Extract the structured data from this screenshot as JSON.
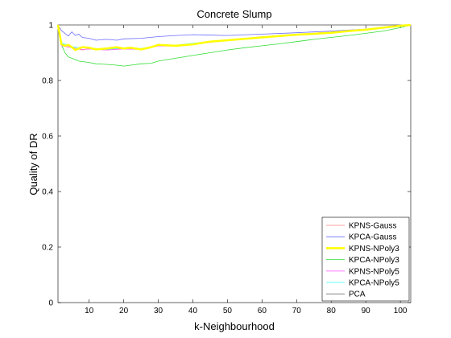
{
  "chart_data": {
    "type": "line",
    "title": "Concrete Slump",
    "xlabel": "k-Neighbourhood",
    "ylabel": "Quality of DR",
    "xlim": [
      1,
      103
    ],
    "ylim": [
      0,
      1.0
    ],
    "x_ticks": [
      10,
      20,
      30,
      40,
      50,
      60,
      70,
      80,
      90,
      100
    ],
    "y_ticks": [
      0,
      0.2,
      0.4,
      0.6,
      0.8,
      1
    ],
    "y_tick_labels": [
      "0",
      "0.2",
      "0.4",
      "0.6",
      "0.8",
      "1"
    ],
    "legend_position": "bottom-right",
    "grid": false,
    "series": [
      {
        "name": "KPNS-Gauss",
        "color": "#ff8080",
        "stroke_width": 0.8,
        "x": [
          1,
          2,
          5,
          8,
          10,
          15,
          20,
          25,
          30,
          35,
          40,
          50,
          60,
          70,
          80,
          90,
          100,
          103
        ],
        "y": [
          1.0,
          0.93,
          0.92,
          0.91,
          0.915,
          0.91,
          0.915,
          0.913,
          0.925,
          0.925,
          0.932,
          0.945,
          0.958,
          0.966,
          0.975,
          0.985,
          0.995,
          1.0
        ]
      },
      {
        "name": "KPCA-Gauss",
        "color": "#6a6aff",
        "stroke_width": 0.8,
        "x": [
          1,
          2,
          3,
          4,
          5,
          6,
          7,
          8,
          10,
          12,
          15,
          18,
          20,
          25,
          30,
          35,
          40,
          50,
          60,
          70,
          80,
          90,
          100,
          103
        ],
        "y": [
          1.0,
          0.98,
          0.97,
          0.96,
          0.975,
          0.962,
          0.967,
          0.955,
          0.952,
          0.945,
          0.948,
          0.945,
          0.95,
          0.952,
          0.958,
          0.962,
          0.965,
          0.962,
          0.967,
          0.972,
          0.978,
          0.985,
          0.995,
          1.0
        ]
      },
      {
        "name": "KPNS-NPoly3",
        "color": "#ffff00",
        "stroke_width": 2.5,
        "x": [
          1,
          2,
          3,
          4,
          5,
          6,
          7,
          8,
          10,
          12,
          15,
          18,
          20,
          22,
          25,
          28,
          30,
          35,
          40,
          45,
          50,
          55,
          60,
          65,
          70,
          75,
          80,
          85,
          90,
          95,
          100,
          103
        ],
        "y": [
          1.0,
          0.93,
          0.925,
          0.928,
          0.92,
          0.91,
          0.915,
          0.92,
          0.918,
          0.912,
          0.915,
          0.92,
          0.915,
          0.918,
          0.912,
          0.92,
          0.928,
          0.925,
          0.93,
          0.94,
          0.945,
          0.95,
          0.955,
          0.96,
          0.965,
          0.968,
          0.972,
          0.978,
          0.983,
          0.99,
          0.997,
          1.0
        ]
      },
      {
        "name": "KPCA-NPoly3",
        "color": "#33dd33",
        "stroke_width": 0.8,
        "x": [
          1,
          2,
          3,
          4,
          5,
          6,
          7,
          8,
          10,
          12,
          15,
          18,
          20,
          22,
          25,
          28,
          30,
          35,
          40,
          45,
          50,
          55,
          60,
          65,
          70,
          75,
          80,
          85,
          90,
          95,
          100,
          103
        ],
        "y": [
          1.0,
          0.93,
          0.9,
          0.885,
          0.88,
          0.875,
          0.87,
          0.868,
          0.865,
          0.86,
          0.858,
          0.855,
          0.852,
          0.855,
          0.86,
          0.862,
          0.87,
          0.88,
          0.89,
          0.9,
          0.91,
          0.918,
          0.925,
          0.932,
          0.94,
          0.948,
          0.955,
          0.962,
          0.97,
          0.978,
          0.99,
          1.0
        ]
      },
      {
        "name": "KPNS-NPoly5",
        "color": "#ff66ff",
        "stroke_width": 0.8,
        "x": [
          1,
          2,
          5,
          8,
          10,
          15,
          20,
          25,
          30,
          35,
          40,
          50,
          60,
          70,
          80,
          90,
          100,
          103
        ],
        "y": [
          1.0,
          0.925,
          0.918,
          0.912,
          0.913,
          0.91,
          0.913,
          0.912,
          0.924,
          0.924,
          0.93,
          0.944,
          0.956,
          0.964,
          0.973,
          0.984,
          0.995,
          1.0
        ]
      },
      {
        "name": "KPCA-NPoly5",
        "color": "#33ffff",
        "stroke_width": 0.8,
        "x": [
          1,
          2,
          5,
          8,
          10,
          15,
          20,
          25,
          30,
          35,
          40,
          50,
          60,
          70,
          80,
          90,
          100,
          103
        ],
        "y": [
          1.0,
          0.935,
          0.922,
          0.917,
          0.917,
          0.912,
          0.917,
          0.915,
          0.926,
          0.927,
          0.934,
          0.946,
          0.957,
          0.965,
          0.974,
          0.985,
          0.996,
          1.0
        ]
      },
      {
        "name": "PCA",
        "color": "#777777",
        "stroke_width": 0.8,
        "x": [
          1,
          103
        ],
        "y": [
          1.0,
          1.0
        ]
      }
    ]
  }
}
